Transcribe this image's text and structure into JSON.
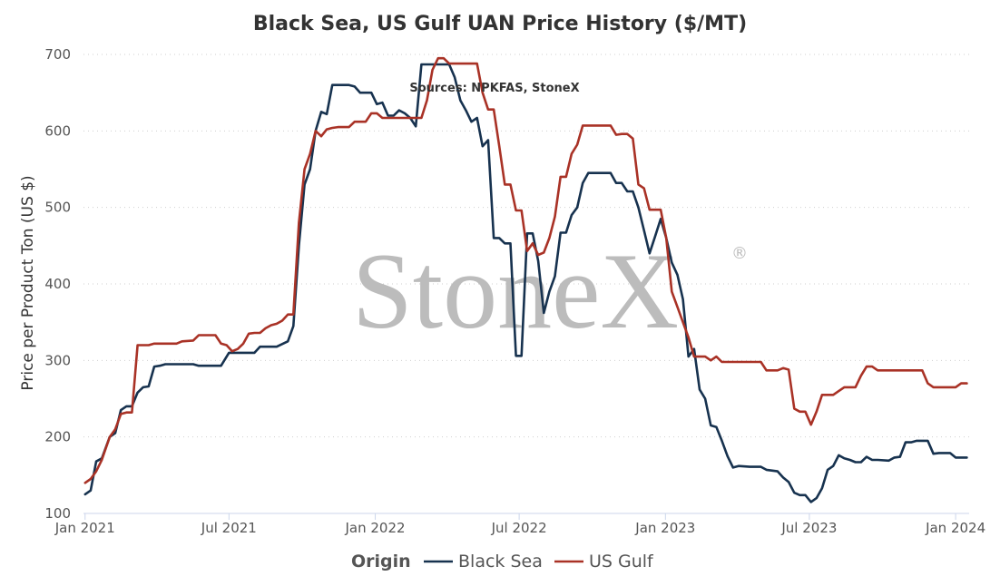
{
  "chart_data": {
    "type": "line",
    "title": "Black Sea, US Gulf UAN Price History ($/MT)",
    "source_note": "Sources: NPKFAS, StoneX",
    "watermark": "StoneX",
    "watermark_mark": "®",
    "xlabel": "",
    "ylabel": "Price per Product Ton (US $)",
    "ylim": [
      100,
      700
    ],
    "yticks": [
      "100",
      "200",
      "300",
      "400",
      "500",
      "600",
      "700"
    ],
    "xticks": [
      {
        "date": "2021-01-01",
        "label": "Jan 2021"
      },
      {
        "date": "2021-07-01",
        "label": "Jul 2021"
      },
      {
        "date": "2022-01-01",
        "label": "Jan 2022"
      },
      {
        "date": "2022-07-01",
        "label": "Jul 2022"
      },
      {
        "date": "2023-01-01",
        "label": "Jan 2023"
      },
      {
        "date": "2023-07-01",
        "label": "Jul 2023"
      },
      {
        "date": "2024-01-01",
        "label": "Jan 2024"
      }
    ],
    "xlim": [
      "2020-12-30",
      "2024-01-18"
    ],
    "grid": "horizontal dotted",
    "legend": {
      "title": "Origin",
      "position": "bottom"
    },
    "series": [
      {
        "name": "Black Sea",
        "color": "#17324f",
        "points": [
          [
            "2021-01-01",
            125
          ],
          [
            "2021-01-08",
            130
          ],
          [
            "2021-01-15",
            168
          ],
          [
            "2021-01-22",
            172
          ],
          [
            "2021-02-01",
            200
          ],
          [
            "2021-02-08",
            205
          ],
          [
            "2021-02-15",
            235
          ],
          [
            "2021-02-22",
            240
          ],
          [
            "2021-03-01",
            240
          ],
          [
            "2021-03-08",
            258
          ],
          [
            "2021-03-15",
            265
          ],
          [
            "2021-03-22",
            266
          ],
          [
            "2021-03-29",
            292
          ],
          [
            "2021-04-05",
            293
          ],
          [
            "2021-04-12",
            295
          ],
          [
            "2021-05-03",
            295
          ],
          [
            "2021-05-17",
            295
          ],
          [
            "2021-05-24",
            293
          ],
          [
            "2021-06-07",
            293
          ],
          [
            "2021-06-21",
            293
          ],
          [
            "2021-07-01",
            310
          ],
          [
            "2021-07-19",
            310
          ],
          [
            "2021-08-02",
            310
          ],
          [
            "2021-08-09",
            318
          ],
          [
            "2021-08-30",
            318
          ],
          [
            "2021-09-13",
            325
          ],
          [
            "2021-09-20",
            345
          ],
          [
            "2021-09-27",
            450
          ],
          [
            "2021-10-04",
            530
          ],
          [
            "2021-10-11",
            550
          ],
          [
            "2021-10-18",
            600
          ],
          [
            "2021-10-25",
            625
          ],
          [
            "2021-11-01",
            622
          ],
          [
            "2021-11-08",
            660
          ],
          [
            "2021-11-15",
            660
          ],
          [
            "2021-11-29",
            660
          ],
          [
            "2021-12-06",
            658
          ],
          [
            "2021-12-13",
            650
          ],
          [
            "2021-12-27",
            650
          ],
          [
            "2022-01-03",
            635
          ],
          [
            "2022-01-10",
            637
          ],
          [
            "2022-01-17",
            620
          ],
          [
            "2022-01-24",
            620
          ],
          [
            "2022-01-31",
            627
          ],
          [
            "2022-02-07",
            623
          ],
          [
            "2022-02-14",
            617
          ],
          [
            "2022-02-21",
            606
          ],
          [
            "2022-02-28",
            687
          ],
          [
            "2022-03-21",
            687
          ],
          [
            "2022-04-04",
            687
          ],
          [
            "2022-04-11",
            670
          ],
          [
            "2022-04-18",
            640
          ],
          [
            "2022-04-25",
            627
          ],
          [
            "2022-05-02",
            612
          ],
          [
            "2022-05-09",
            617
          ],
          [
            "2022-05-16",
            580
          ],
          [
            "2022-05-23",
            588
          ],
          [
            "2022-05-30",
            460
          ],
          [
            "2022-06-06",
            460
          ],
          [
            "2022-06-13",
            453
          ],
          [
            "2022-06-20",
            453
          ],
          [
            "2022-06-27",
            306
          ],
          [
            "2022-07-04",
            306
          ],
          [
            "2022-07-11",
            466
          ],
          [
            "2022-07-18",
            466
          ],
          [
            "2022-07-25",
            430
          ],
          [
            "2022-08-01",
            362
          ],
          [
            "2022-08-08",
            390
          ],
          [
            "2022-08-15",
            410
          ],
          [
            "2022-08-22",
            467
          ],
          [
            "2022-08-29",
            467
          ],
          [
            "2022-09-05",
            490
          ],
          [
            "2022-09-12",
            500
          ],
          [
            "2022-09-19",
            532
          ],
          [
            "2022-09-26",
            545
          ],
          [
            "2022-10-10",
            545
          ],
          [
            "2022-10-24",
            545
          ],
          [
            "2022-10-31",
            532
          ],
          [
            "2022-11-07",
            532
          ],
          [
            "2022-11-14",
            521
          ],
          [
            "2022-11-21",
            521
          ],
          [
            "2022-11-28",
            500
          ],
          [
            "2022-12-05",
            470
          ],
          [
            "2022-12-12",
            440
          ],
          [
            "2022-12-19",
            462
          ],
          [
            "2022-12-26",
            485
          ],
          [
            "2023-01-02",
            460
          ],
          [
            "2023-01-09",
            428
          ],
          [
            "2023-01-16",
            412
          ],
          [
            "2023-01-23",
            380
          ],
          [
            "2023-01-30",
            305
          ],
          [
            "2023-02-06",
            315
          ],
          [
            "2023-02-13",
            262
          ],
          [
            "2023-02-20",
            250
          ],
          [
            "2023-02-27",
            215
          ],
          [
            "2023-03-06",
            213
          ],
          [
            "2023-03-13",
            195
          ],
          [
            "2023-03-20",
            175
          ],
          [
            "2023-03-27",
            160
          ],
          [
            "2023-04-03",
            162
          ],
          [
            "2023-04-17",
            161
          ],
          [
            "2023-05-01",
            161
          ],
          [
            "2023-05-08",
            157
          ],
          [
            "2023-05-22",
            155
          ],
          [
            "2023-05-29",
            147
          ],
          [
            "2023-06-05",
            141
          ],
          [
            "2023-06-12",
            127
          ],
          [
            "2023-06-19",
            124
          ],
          [
            "2023-06-26",
            124
          ],
          [
            "2023-07-03",
            115
          ],
          [
            "2023-07-10",
            120
          ],
          [
            "2023-07-17",
            133
          ],
          [
            "2023-07-24",
            157
          ],
          [
            "2023-07-31",
            162
          ],
          [
            "2023-08-07",
            176
          ],
          [
            "2023-08-14",
            172
          ],
          [
            "2023-08-21",
            170
          ],
          [
            "2023-08-28",
            167
          ],
          [
            "2023-09-04",
            167
          ],
          [
            "2023-09-11",
            174
          ],
          [
            "2023-09-18",
            170
          ],
          [
            "2023-09-25",
            170
          ],
          [
            "2023-10-09",
            169
          ],
          [
            "2023-10-16",
            173
          ],
          [
            "2023-10-23",
            174
          ],
          [
            "2023-10-30",
            193
          ],
          [
            "2023-11-06",
            193
          ],
          [
            "2023-11-13",
            195
          ],
          [
            "2023-11-27",
            195
          ],
          [
            "2023-12-04",
            178
          ],
          [
            "2023-12-11",
            179
          ],
          [
            "2023-12-25",
            179
          ],
          [
            "2024-01-01",
            173
          ],
          [
            "2024-01-15",
            173
          ]
        ]
      },
      {
        "name": "US Gulf",
        "color": "#a93226",
        "points": [
          [
            "2021-01-01",
            140
          ],
          [
            "2021-01-08",
            145
          ],
          [
            "2021-01-15",
            155
          ],
          [
            "2021-01-22",
            170
          ],
          [
            "2021-02-01",
            200
          ],
          [
            "2021-02-08",
            210
          ],
          [
            "2021-02-15",
            230
          ],
          [
            "2021-02-22",
            232
          ],
          [
            "2021-03-01",
            232
          ],
          [
            "2021-03-08",
            320
          ],
          [
            "2021-03-22",
            320
          ],
          [
            "2021-03-29",
            322
          ],
          [
            "2021-04-12",
            322
          ],
          [
            "2021-04-26",
            322
          ],
          [
            "2021-05-03",
            325
          ],
          [
            "2021-05-17",
            326
          ],
          [
            "2021-05-24",
            333
          ],
          [
            "2021-06-07",
            333
          ],
          [
            "2021-06-14",
            333
          ],
          [
            "2021-06-21",
            322
          ],
          [
            "2021-06-28",
            320
          ],
          [
            "2021-07-05",
            312
          ],
          [
            "2021-07-12",
            315
          ],
          [
            "2021-07-19",
            322
          ],
          [
            "2021-07-26",
            335
          ],
          [
            "2021-08-02",
            336
          ],
          [
            "2021-08-09",
            336
          ],
          [
            "2021-08-16",
            342
          ],
          [
            "2021-08-23",
            346
          ],
          [
            "2021-08-30",
            348
          ],
          [
            "2021-09-06",
            352
          ],
          [
            "2021-09-13",
            360
          ],
          [
            "2021-09-20",
            360
          ],
          [
            "2021-09-27",
            480
          ],
          [
            "2021-10-04",
            550
          ],
          [
            "2021-10-11",
            570
          ],
          [
            "2021-10-18",
            600
          ],
          [
            "2021-10-25",
            593
          ],
          [
            "2021-11-01",
            602
          ],
          [
            "2021-11-08",
            604
          ],
          [
            "2021-11-15",
            605
          ],
          [
            "2021-11-29",
            605
          ],
          [
            "2021-12-06",
            612
          ],
          [
            "2021-12-20",
            612
          ],
          [
            "2021-12-27",
            623
          ],
          [
            "2022-01-03",
            623
          ],
          [
            "2022-01-10",
            617
          ],
          [
            "2022-01-24",
            617
          ],
          [
            "2022-02-07",
            617
          ],
          [
            "2022-02-21",
            617
          ],
          [
            "2022-02-28",
            617
          ],
          [
            "2022-03-07",
            640
          ],
          [
            "2022-03-14",
            680
          ],
          [
            "2022-03-21",
            695
          ],
          [
            "2022-03-28",
            695
          ],
          [
            "2022-04-04",
            688
          ],
          [
            "2022-04-18",
            688
          ],
          [
            "2022-05-02",
            688
          ],
          [
            "2022-05-09",
            688
          ],
          [
            "2022-05-16",
            650
          ],
          [
            "2022-05-23",
            628
          ],
          [
            "2022-05-30",
            628
          ],
          [
            "2022-06-06",
            580
          ],
          [
            "2022-06-13",
            530
          ],
          [
            "2022-06-20",
            530
          ],
          [
            "2022-06-27",
            496
          ],
          [
            "2022-07-04",
            496
          ],
          [
            "2022-07-11",
            443
          ],
          [
            "2022-07-18",
            453
          ],
          [
            "2022-07-25",
            438
          ],
          [
            "2022-08-01",
            441
          ],
          [
            "2022-08-08",
            460
          ],
          [
            "2022-08-15",
            488
          ],
          [
            "2022-08-22",
            540
          ],
          [
            "2022-08-29",
            540
          ],
          [
            "2022-09-05",
            570
          ],
          [
            "2022-09-12",
            582
          ],
          [
            "2022-09-19",
            607
          ],
          [
            "2022-10-03",
            607
          ],
          [
            "2022-10-17",
            607
          ],
          [
            "2022-10-24",
            607
          ],
          [
            "2022-10-31",
            595
          ],
          [
            "2022-11-07",
            596
          ],
          [
            "2022-11-14",
            596
          ],
          [
            "2022-11-21",
            590
          ],
          [
            "2022-11-28",
            530
          ],
          [
            "2022-12-05",
            525
          ],
          [
            "2022-12-12",
            497
          ],
          [
            "2022-12-26",
            497
          ],
          [
            "2023-01-02",
            460
          ],
          [
            "2023-01-09",
            390
          ],
          [
            "2023-01-16",
            370
          ],
          [
            "2023-01-23",
            350
          ],
          [
            "2023-01-30",
            330
          ],
          [
            "2023-02-06",
            305
          ],
          [
            "2023-02-13",
            305
          ],
          [
            "2023-02-20",
            305
          ],
          [
            "2023-02-27",
            300
          ],
          [
            "2023-03-06",
            305
          ],
          [
            "2023-03-13",
            298
          ],
          [
            "2023-03-27",
            298
          ],
          [
            "2023-04-10",
            298
          ],
          [
            "2023-04-24",
            298
          ],
          [
            "2023-05-01",
            298
          ],
          [
            "2023-05-08",
            287
          ],
          [
            "2023-05-22",
            287
          ],
          [
            "2023-05-29",
            290
          ],
          [
            "2023-06-05",
            288
          ],
          [
            "2023-06-12",
            237
          ],
          [
            "2023-06-19",
            233
          ],
          [
            "2023-06-26",
            233
          ],
          [
            "2023-07-03",
            216
          ],
          [
            "2023-07-10",
            233
          ],
          [
            "2023-07-17",
            255
          ],
          [
            "2023-07-31",
            255
          ],
          [
            "2023-08-07",
            260
          ],
          [
            "2023-08-14",
            265
          ],
          [
            "2023-08-28",
            265
          ],
          [
            "2023-09-04",
            280
          ],
          [
            "2023-09-11",
            292
          ],
          [
            "2023-09-18",
            292
          ],
          [
            "2023-09-25",
            287
          ],
          [
            "2023-10-09",
            287
          ],
          [
            "2023-10-23",
            287
          ],
          [
            "2023-11-06",
            287
          ],
          [
            "2023-11-20",
            287
          ],
          [
            "2023-11-27",
            270
          ],
          [
            "2023-12-04",
            265
          ],
          [
            "2023-12-18",
            265
          ],
          [
            "2024-01-01",
            265
          ],
          [
            "2024-01-08",
            270
          ],
          [
            "2024-01-15",
            270
          ]
        ]
      }
    ]
  }
}
